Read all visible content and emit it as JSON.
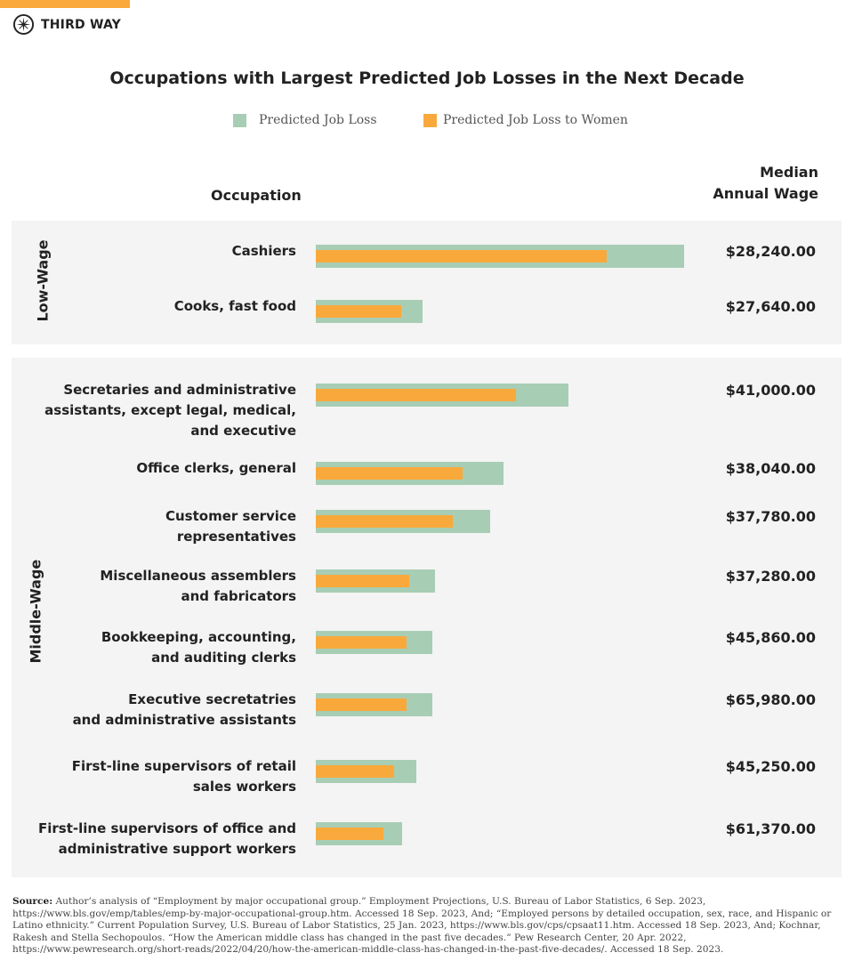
{
  "brand": {
    "name": "THIRD WAY",
    "accent": "#f9a93b"
  },
  "chart_data": {
    "type": "bar",
    "orientation": "horizontal",
    "title": "Occupations with Largest Predicted Job Losses in the Next Decade",
    "column_headers": {
      "occupation": "Occupation",
      "wage": "Median Annual Wage"
    },
    "wage_header_lines": [
      "Median",
      "Annual Wage"
    ],
    "series": [
      {
        "name": "Predicted Job Loss",
        "color": "#a8cdb5",
        "values": [
          354,
          103,
          243,
          180,
          168,
          115,
          112,
          112,
          97,
          83
        ]
      },
      {
        "name": "Predicted Job Loss to Women",
        "color": "#f9a93b",
        "values": [
          280,
          82,
          192,
          141,
          132,
          90,
          87,
          87,
          75,
          65
        ]
      }
    ],
    "groups": [
      {
        "name": "Low-Wage",
        "rows": [
          0,
          1
        ]
      },
      {
        "name": "Middle-Wage",
        "rows": [
          2,
          3,
          4,
          5,
          6,
          7,
          8,
          9
        ]
      }
    ],
    "categories": [
      "Cashiers",
      "Cooks, fast food",
      "Secretaries and administrative\nassistants, except legal, medical,\nand executive",
      "Office clerks, general",
      "Customer service\nrepresentatives",
      "Miscellaneous assemblers\nand fabricators",
      "Bookkeeping, accounting,\nand auditing clerks",
      "Executive secretatries\nand administrative assistants",
      "First-line supervisors of retail\nsales workers",
      "First-line supervisors of office and\nadministrative support workers"
    ],
    "wages": [
      "$28,240.00",
      "$27,640.00",
      "$41,000.00",
      "$38,040.00",
      "$37,780.00",
      "$37,280.00",
      "$45,860.00",
      "$65,980.00",
      "$45,250.00",
      "$61,370.00"
    ],
    "axis": "none shown",
    "legend_position": "top"
  },
  "source": {
    "label": "Source:",
    "text": " Author’s analysis of “Employment by major occupational group.” Employment Projections, U.S. Bureau of Labor Statistics, 6 Sep. 2023, https://www.bls.gov/emp/tables/emp-by-major-occupational-group.htm. Accessed 18 Sep. 2023, And; “Employed persons by detailed occupation, sex, race, and Hispanic or Latino ethnicity.” Current Population Survey, U.S. Bureau of Labor Statistics, 25 Jan. 2023, https://www.bls.gov/cps/cpsaat11.htm. Accessed 18 Sep. 2023, And; Kochnar, Rakesh and Stella Sechopoulos. “How the American middle class has changed in the past five decades.” Pew Research Center, 20 Apr. 2022, https://www.pewresearch.org/short-reads/2022/04/20/how-the-american-middle-class-has-changed-in-the-past-five-decades/. Accessed 18 Sep. 2023."
  }
}
